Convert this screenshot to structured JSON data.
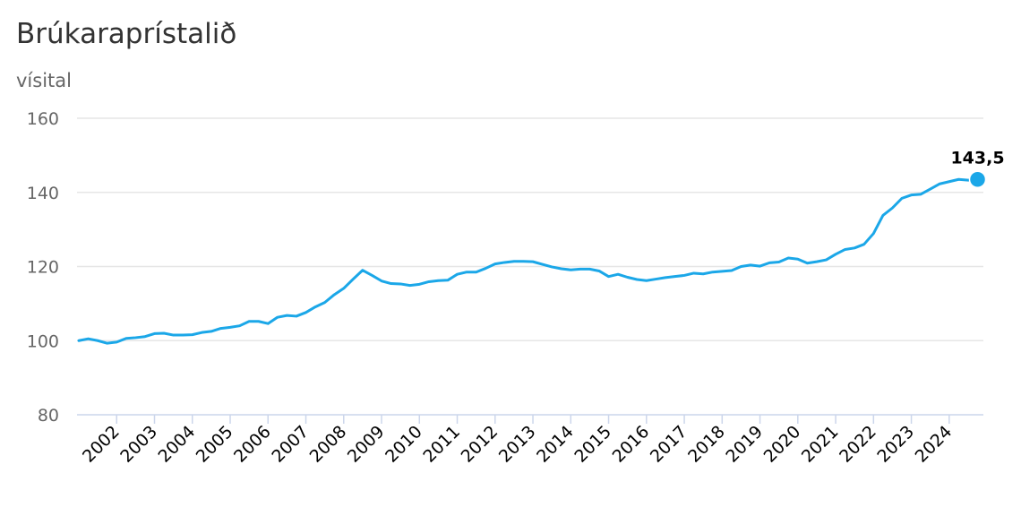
{
  "colors": {
    "series": "#1ba7e8",
    "grid": "#e6e6e6",
    "axis": "#ccd6eb",
    "tick_text": "#666666",
    "title_text": "#333333"
  },
  "chart_data": {
    "type": "line",
    "title": "Brúkaraprístalið",
    "ylabel": "vísital",
    "xlabel": "",
    "ylim": [
      80,
      160
    ],
    "xlim": [
      2001.0,
      2024.88
    ],
    "yticks": [
      80,
      100,
      120,
      140,
      160
    ],
    "xticks": [
      2002,
      2003,
      2004,
      2005,
      2006,
      2007,
      2008,
      2009,
      2010,
      2011,
      2012,
      2013,
      2014,
      2015,
      2016,
      2017,
      2018,
      2019,
      2020,
      2021,
      2022,
      2023,
      2024
    ],
    "xtick_labels": [
      "2002",
      "2003",
      "2004",
      "2005",
      "2006",
      "2007",
      "2008",
      "2009",
      "2010",
      "2011",
      "2012",
      "2013",
      "2014",
      "2015",
      "2016",
      "2017",
      "2018",
      "2019",
      "2020",
      "2021",
      "2022",
      "2023",
      "2024"
    ],
    "grid": true,
    "legend": "none",
    "last_point_label": "143,5",
    "series": [
      {
        "color": "#1ba7e8",
        "x": [
          2001.0,
          2001.25,
          2001.5,
          2001.75,
          2002.0,
          2002.25,
          2002.5,
          2002.75,
          2003.0,
          2003.25,
          2003.5,
          2003.75,
          2004.0,
          2004.25,
          2004.5,
          2004.75,
          2005.0,
          2005.25,
          2005.5,
          2005.75,
          2006.0,
          2006.25,
          2006.5,
          2006.75,
          2007.0,
          2007.25,
          2007.5,
          2007.75,
          2008.0,
          2008.25,
          2008.5,
          2008.75,
          2009.0,
          2009.25,
          2009.5,
          2009.75,
          2010.0,
          2010.25,
          2010.5,
          2010.75,
          2011.0,
          2011.25,
          2011.5,
          2011.75,
          2012.0,
          2012.25,
          2012.5,
          2012.75,
          2013.0,
          2013.25,
          2013.5,
          2013.75,
          2014.0,
          2014.25,
          2014.5,
          2014.75,
          2015.0,
          2015.25,
          2015.5,
          2015.75,
          2016.0,
          2016.25,
          2016.5,
          2016.75,
          2017.0,
          2017.25,
          2017.5,
          2017.75,
          2018.0,
          2018.25,
          2018.5,
          2018.75,
          2019.0,
          2019.25,
          2019.5,
          2019.75,
          2020.0,
          2020.25,
          2020.5,
          2020.75,
          2021.0,
          2021.25,
          2021.5,
          2021.75,
          2022.0,
          2022.25,
          2022.5,
          2022.75,
          2023.0,
          2023.25,
          2023.5,
          2023.75,
          2024.0,
          2024.25,
          2024.5,
          2024.75
        ],
        "values": [
          100.0,
          100.5,
          100.0,
          99.3,
          99.6,
          100.6,
          100.8,
          101.1,
          101.9,
          102.0,
          101.5,
          101.5,
          101.6,
          102.2,
          102.5,
          103.3,
          103.6,
          104.0,
          105.2,
          105.2,
          104.6,
          106.3,
          106.8,
          106.6,
          107.6,
          109.1,
          110.3,
          112.4,
          114.1,
          116.6,
          119.0,
          117.6,
          116.1,
          115.4,
          115.3,
          114.9,
          115.2,
          115.9,
          116.2,
          116.3,
          117.9,
          118.5,
          118.5,
          119.5,
          120.7,
          121.1,
          121.4,
          121.4,
          121.3,
          120.6,
          119.9,
          119.4,
          119.1,
          119.3,
          119.3,
          118.8,
          117.3,
          117.9,
          117.1,
          116.5,
          116.2,
          116.6,
          117.0,
          117.3,
          117.6,
          118.2,
          118.0,
          118.5,
          118.7,
          118.9,
          120.0,
          120.4,
          120.1,
          121.0,
          121.2,
          122.3,
          122.0,
          120.9,
          121.3,
          121.8,
          123.3,
          124.6,
          125.0,
          126.0,
          128.9,
          133.8,
          135.8,
          138.4,
          139.3,
          139.5,
          140.9,
          142.3,
          142.9,
          143.5,
          143.3,
          143.5
        ]
      }
    ]
  }
}
